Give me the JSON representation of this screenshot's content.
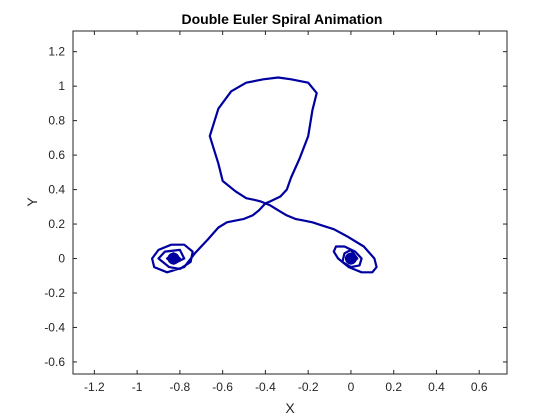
{
  "chart_data": {
    "type": "line",
    "title": "Double Euler Spiral Animation",
    "xlabel": "X",
    "ylabel": "Y",
    "xlim": [
      -1.3,
      0.73
    ],
    "ylim": [
      -0.67,
      1.32
    ],
    "xticks": [
      -1.2,
      -1,
      -0.8,
      -0.6,
      -0.4,
      -0.2,
      0,
      0.2,
      0.4,
      0.6
    ],
    "xtick_labels": [
      "-1.2",
      "-1",
      "-0.8",
      "-0.6",
      "-0.4",
      "-0.2",
      "0",
      "0.2",
      "0.4",
      "0.6"
    ],
    "yticks": [
      -0.6,
      -0.4,
      -0.2,
      0,
      0.2,
      0.4,
      0.6,
      0.8,
      1,
      1.2
    ],
    "ytick_labels": [
      "-0.6",
      "-0.4",
      "-0.2",
      "0",
      "0.2",
      "0.4",
      "0.6",
      "0.8",
      "1",
      "1.2"
    ],
    "grid": false,
    "series": [
      {
        "color": "#0000a0",
        "curve": "double euler spiral",
        "x": [
          -0.83,
          -0.8,
          -0.83,
          -0.86,
          -0.83,
          -0.78,
          -0.8,
          -0.87,
          -0.9,
          -0.85,
          -0.8,
          -0.75,
          -0.74,
          -0.78,
          -0.84,
          -0.9,
          -0.93,
          -0.92,
          -0.86,
          -0.78,
          -0.73,
          -0.67,
          -0.62,
          -0.58,
          -0.54,
          -0.5,
          -0.46,
          -0.43,
          -0.4,
          -0.38,
          -0.33,
          -0.3,
          -0.28,
          -0.24,
          -0.2,
          -0.18,
          -0.16,
          -0.2,
          -0.28,
          -0.34,
          -0.41,
          -0.49,
          -0.56,
          -0.62,
          -0.66,
          -0.62,
          -0.6,
          -0.54,
          -0.49,
          -0.45,
          -0.42,
          -0.38,
          -0.34,
          -0.3,
          -0.26,
          -0.22,
          -0.18,
          -0.13,
          -0.08,
          -0.02,
          0.06,
          0.11,
          0.12,
          0.1,
          0.05,
          -0.01,
          -0.06,
          -0.08,
          -0.07,
          -0.03,
          0.02,
          0.05,
          0.04,
          0.0,
          -0.04,
          -0.03,
          0.0,
          0.03,
          0.0
        ],
        "y": [
          0.0,
          0.0,
          0.03,
          0.0,
          -0.03,
          0.0,
          0.05,
          0.04,
          0.0,
          -0.05,
          -0.06,
          -0.02,
          0.04,
          0.08,
          0.08,
          0.05,
          0.0,
          -0.05,
          -0.08,
          -0.05,
          0.03,
          0.11,
          0.18,
          0.21,
          0.22,
          0.23,
          0.25,
          0.28,
          0.32,
          0.33,
          0.36,
          0.4,
          0.47,
          0.58,
          0.71,
          0.86,
          0.96,
          1.02,
          1.04,
          1.05,
          1.04,
          1.02,
          0.97,
          0.87,
          0.71,
          0.55,
          0.45,
          0.39,
          0.35,
          0.34,
          0.33,
          0.31,
          0.28,
          0.25,
          0.23,
          0.22,
          0.21,
          0.19,
          0.17,
          0.13,
          0.07,
          0.0,
          -0.05,
          -0.08,
          -0.08,
          -0.05,
          0.0,
          0.04,
          0.07,
          0.07,
          0.04,
          0.0,
          -0.04,
          -0.05,
          -0.02,
          0.03,
          0.05,
          0.0,
          -0.03
        ]
      }
    ],
    "markers": [
      {
        "x": -0.83,
        "y": 0.0
      },
      {
        "x": 0.0,
        "y": 0.0
      }
    ]
  }
}
